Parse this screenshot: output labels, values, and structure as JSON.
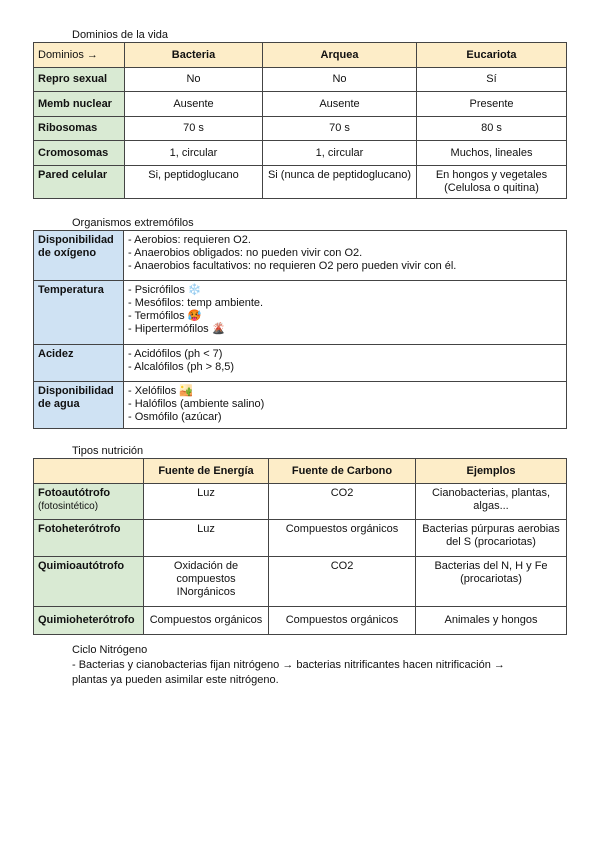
{
  "dominios": {
    "title": "Dominios de la vida",
    "header": [
      "Dominios →",
      "Bacteria",
      "Arquea",
      "Eucariota"
    ],
    "rows": [
      [
        "Repro sexual",
        "No",
        "No",
        "Sí"
      ],
      [
        "Memb nuclear",
        "Ausente",
        "Ausente",
        "Presente"
      ],
      [
        "Ribosomas",
        "70 s",
        "70 s",
        "80 s"
      ],
      [
        "Cromosomas",
        "1, circular",
        "1, circular",
        "Muchos, lineales"
      ],
      [
        "Pared celular",
        "Si, peptidoglucano",
        "Si (nunca de peptidoglucano)",
        "En hongos y vegetales (Celulosa o quitina)"
      ]
    ]
  },
  "extremofilos": {
    "title": "Organismos extremófilos",
    "rows": [
      {
        "label": "Disponibilidad de oxígeno",
        "lines": [
          "- Aerobios: requieren O2.",
          "- Anaerobios obligados: no pueden vivir con O2.",
          "- Anaerobios facultativos: no requieren O2 pero pueden vivir con él."
        ]
      },
      {
        "label": "Temperatura",
        "lines": [
          "- Psicrófilos ❄️",
          "- Mesófilos: temp ambiente.",
          "- Termófilos 🥵",
          "- Hipertermófilos 🌋"
        ]
      },
      {
        "label": "Acidez",
        "lines": [
          "- Acidófilos (ph < 7)",
          "- Alcalófilos (ph > 8,5)"
        ]
      },
      {
        "label": "Disponibilidad de agua",
        "lines": [
          "- Xelófilos 🏜️",
          "- Halófilos (ambiente salino)",
          "- Osmófilo (azúcar)"
        ]
      }
    ]
  },
  "nutricion": {
    "title": "Tipos nutrición",
    "header": [
      "",
      "Fuente de Energía",
      "Fuente de Carbono",
      "Ejemplos"
    ],
    "rows": [
      {
        "label": "Fotoautótrofo",
        "sub": "(fotosintético)",
        "cells": [
          "Luz",
          "CO2",
          "Cianobacterias, plantas, algas..."
        ]
      },
      {
        "label": "Fotoheterótrofo",
        "sub": "",
        "cells": [
          "Luz",
          "Compuestos orgánicos",
          "Bacterias púrpuras aerobias del S (procariotas)"
        ]
      },
      {
        "label": "Quimioautótrofo",
        "sub": "",
        "cells": [
          "Oxidación de compuestos INorgánicos",
          "CO2",
          "Bacterias del N, H y Fe (procariotas)"
        ]
      },
      {
        "label": "Quimioheterótrofo",
        "sub": "",
        "cells": [
          "Compuestos orgánicos",
          "Compuestos orgánicos",
          "Animales y hongos"
        ]
      }
    ]
  },
  "ciclo": {
    "title": "Ciclo Nitrógeno",
    "text": "- Bacterias y cianobacterias fijan nitrógeno → bacterias nitrificantes hacen nitrificación → plantas ya pueden asimilar este nitrógeno."
  }
}
